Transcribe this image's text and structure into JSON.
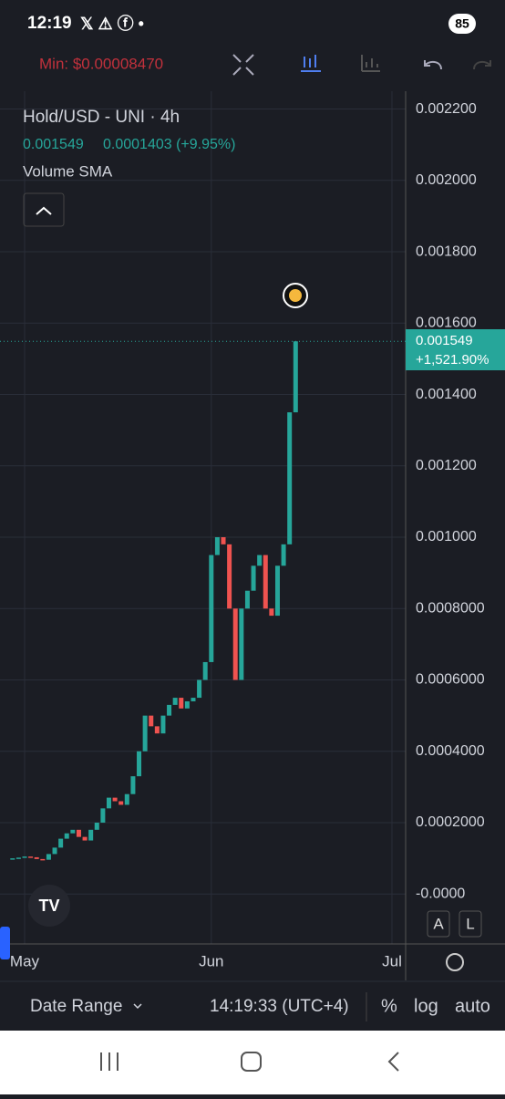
{
  "status_bar": {
    "time": "12:19",
    "battery": "85"
  },
  "toolbar": {
    "min_label": "Min: $0.00008470"
  },
  "legend": {
    "title": "Hold/USD - UNI · 4h",
    "price": "0.001549",
    "change": "0.0001403 (+9.95%)",
    "indicator": "Volume SMA"
  },
  "price_tag": {
    "price": "0.001549",
    "change": "+1,521.90%"
  },
  "scale_buttons": [
    "A",
    "L"
  ],
  "bottom_bar": {
    "date_range": "Date Range",
    "time": "14:19:33 (UTC+4)",
    "percent": "%",
    "log": "log",
    "auto": "auto"
  },
  "chart_data": {
    "type": "candlestick",
    "up_color": "#26a69a",
    "down_color": "#ef5350",
    "grid": true,
    "x": [
      -2,
      -1,
      0,
      1,
      2,
      3,
      4,
      5,
      6,
      7,
      8,
      9,
      10,
      11,
      12,
      13,
      14,
      15,
      16,
      17,
      18,
      19,
      20,
      21,
      22,
      23,
      24,
      25,
      26,
      27,
      28,
      29,
      30,
      31,
      32,
      33,
      34,
      35,
      36,
      37,
      38,
      39,
      40,
      41,
      42,
      43,
      44,
      45
    ],
    "values": [
      0.0001,
      0.000102,
      0.000105,
      0.000103,
      9.8e-05,
      9.6e-05,
      0.000112,
      0.00013,
      0.000155,
      0.00017,
      0.00018,
      0.00016,
      0.00015,
      0.00018,
      0.0002,
      0.00024,
      0.00027,
      0.00026,
      0.00025,
      0.00028,
      0.00033,
      0.0004,
      0.0005,
      0.00047,
      0.00045,
      0.0005,
      0.00053,
      0.00055,
      0.00052,
      0.00054,
      0.00055,
      0.0006,
      0.00065,
      0.00095,
      0.001,
      0.00098,
      0.0008,
      0.0006,
      0.0008,
      0.00085,
      0.00092,
      0.00095,
      0.0008,
      0.00078,
      0.00092,
      0.00098,
      0.00135,
      0.001549
    ],
    "xlim": [
      -2.27,
      63.27
    ],
    "xticks": [
      {
        "value": 0,
        "label": "May"
      },
      {
        "value": 31,
        "label": "Jun"
      },
      {
        "value": 61,
        "label": "Jul"
      }
    ],
    "ylim": [
      -0.00014,
      0.00225
    ],
    "yticks": [
      {
        "value": 0.0022,
        "label": "0.002200"
      },
      {
        "value": 0.002,
        "label": "0.002000"
      },
      {
        "value": 0.0018,
        "label": "0.001800"
      },
      {
        "value": 0.0016,
        "label": "0.001600"
      },
      {
        "value": 0.0014,
        "label": "0.001400"
      },
      {
        "value": 0.0012,
        "label": "0.001200"
      },
      {
        "value": 0.001,
        "label": "0.001000"
      },
      {
        "value": 0.0008,
        "label": "0.0008000"
      },
      {
        "value": 0.0006,
        "label": "0.0006000"
      },
      {
        "value": 0.0004,
        "label": "0.0004000"
      },
      {
        "value": 0.0002,
        "label": "0.0002000"
      },
      {
        "value": 0,
        "label": "-0.0000"
      }
    ]
  }
}
